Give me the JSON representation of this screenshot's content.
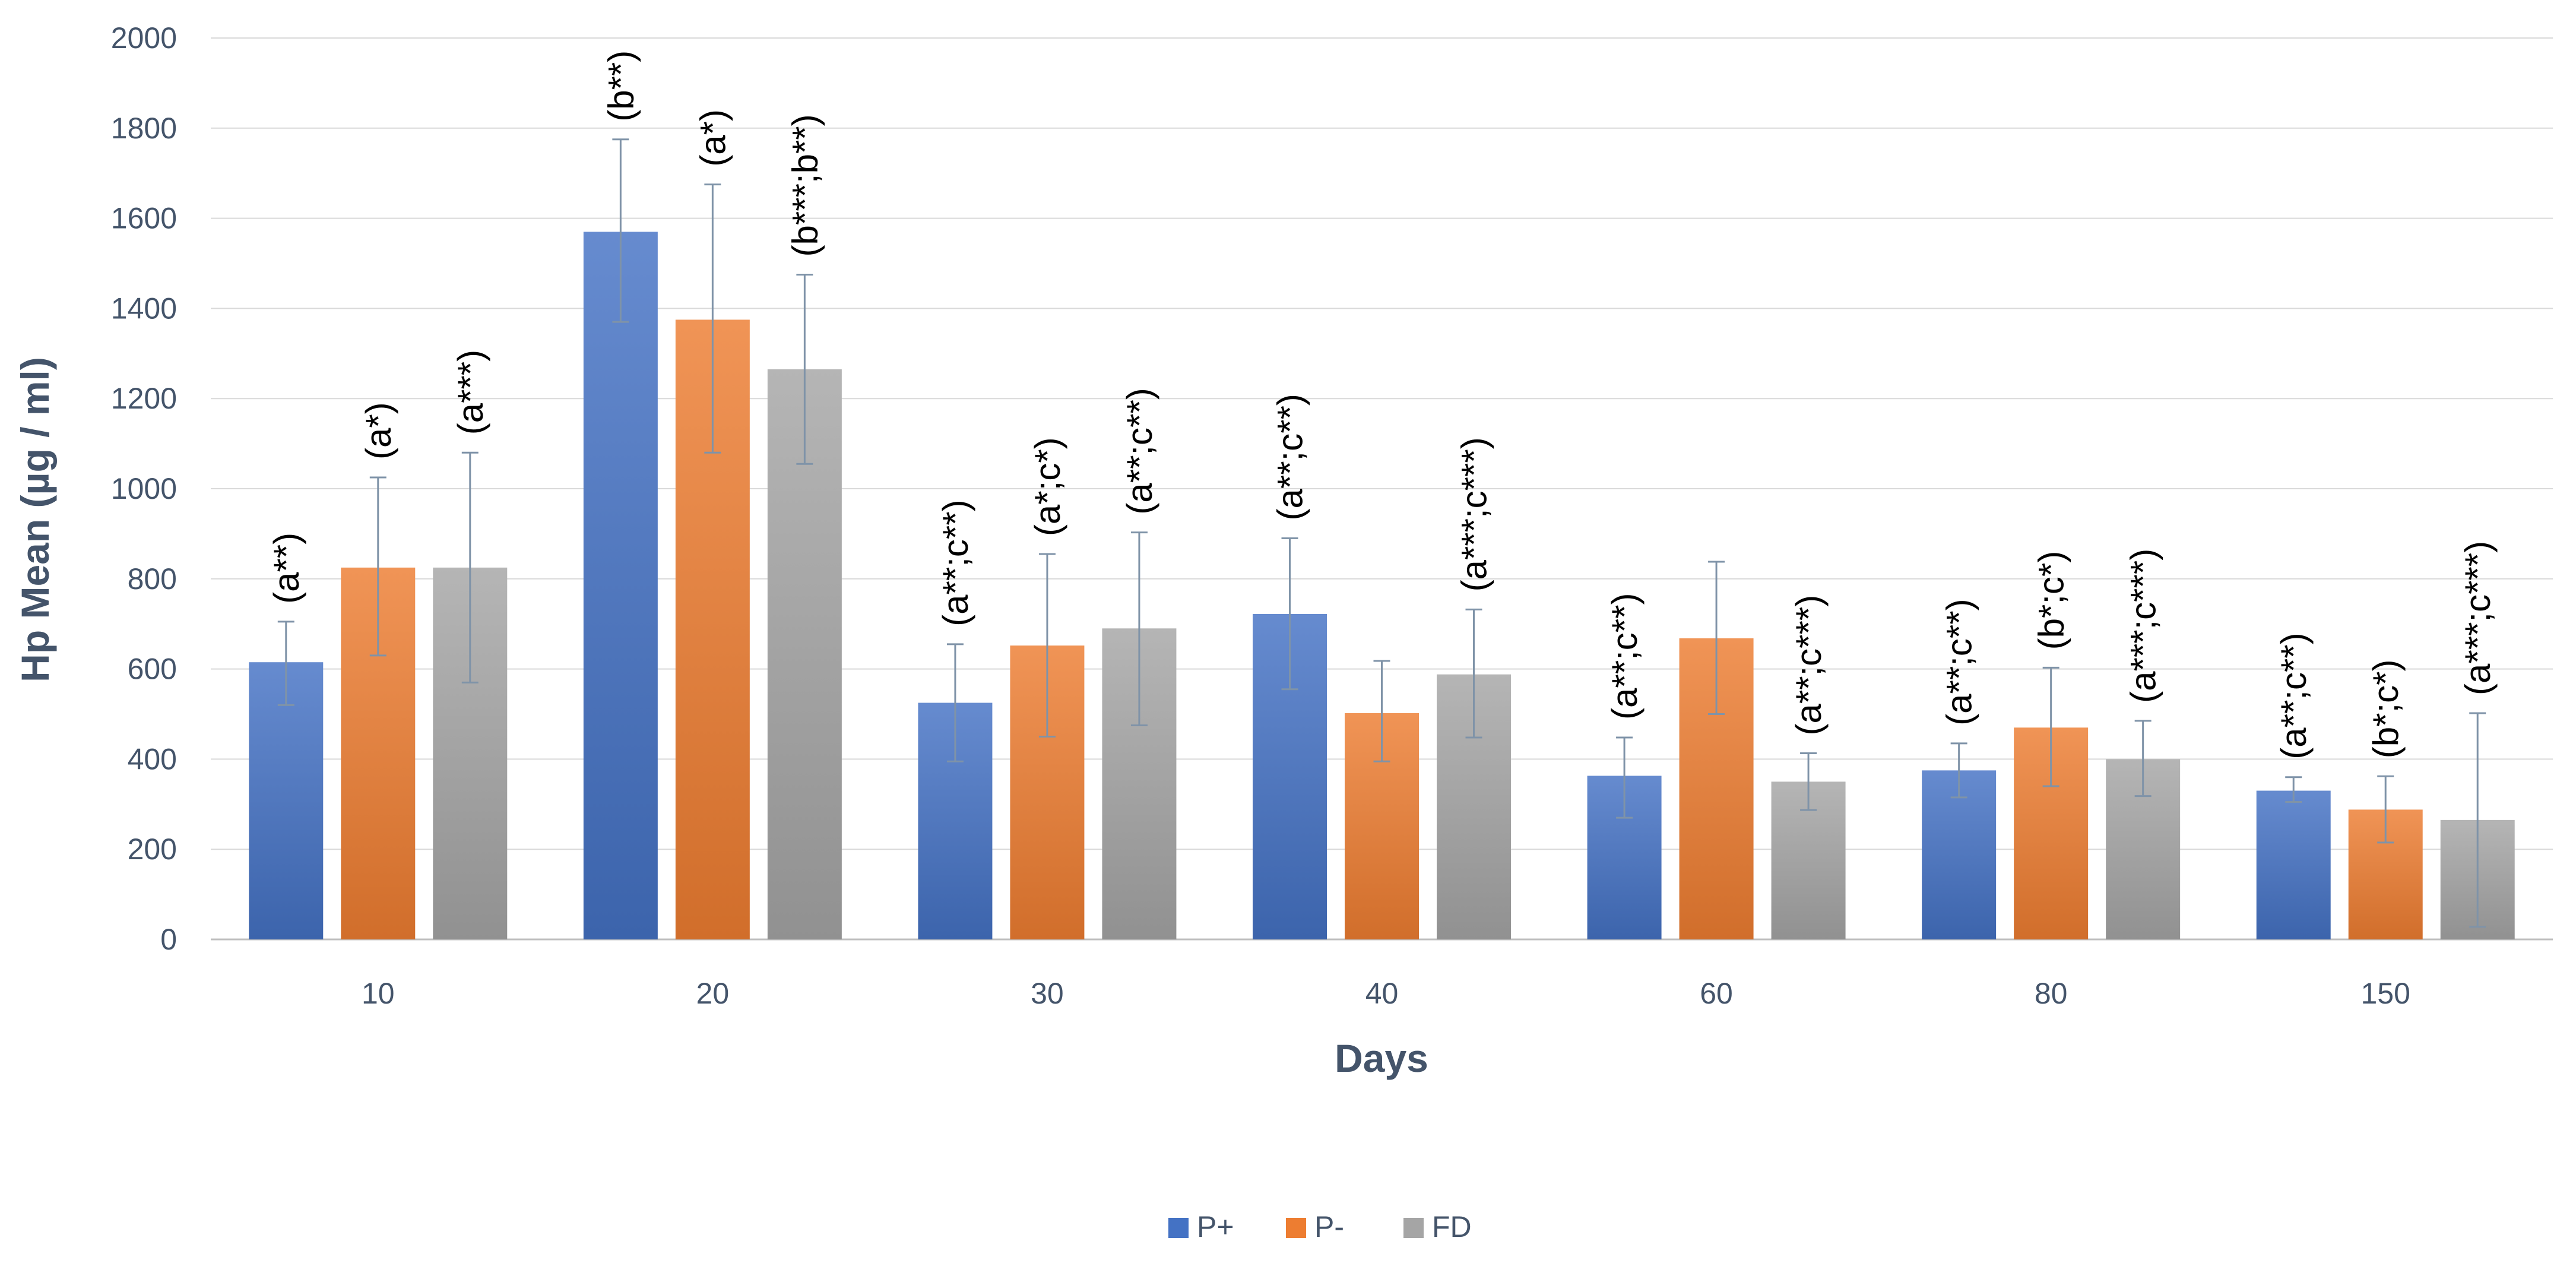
{
  "chart_data": {
    "type": "bar",
    "title": "",
    "xlabel": "Days",
    "ylabel": "Hp Mean (µg / ml)",
    "ylim": [
      0,
      2000
    ],
    "yticks": [
      0,
      200,
      400,
      600,
      800,
      1000,
      1200,
      1400,
      1600,
      1800,
      2000
    ],
    "grid": true,
    "legend_position": "bottom",
    "categories": [
      "10",
      "20",
      "30",
      "40",
      "60",
      "80",
      "150"
    ],
    "series": [
      {
        "name": "P+",
        "color": "#4472c4",
        "values": [
          615,
          1570,
          525,
          722,
          363,
          375,
          330
        ],
        "error_low": [
          520,
          1370,
          395,
          555,
          270,
          315,
          305
        ],
        "error_high": [
          705,
          1775,
          655,
          890,
          448,
          435,
          360
        ],
        "annotations": [
          "(a**)",
          "(b**)",
          "(a**;c**)",
          "(a**;c**)",
          "(a**;c**)",
          "(a**;c**)",
          "(a**;c**)"
        ]
      },
      {
        "name": "P-",
        "color": "#ed7d31",
        "values": [
          825,
          1375,
          652,
          502,
          668,
          470,
          288
        ],
        "error_low": [
          630,
          1080,
          450,
          395,
          500,
          340,
          215
        ],
        "error_high": [
          1025,
          1675,
          855,
          618,
          838,
          603,
          362
        ],
        "annotations": [
          "(a*)",
          "(a*)",
          "(a*;c*)",
          "",
          "",
          "(b*;c*)",
          "(b*;c*)"
        ]
      },
      {
        "name": "FD",
        "color": "#a5a5a5",
        "values": [
          825,
          1265,
          690,
          588,
          350,
          400,
          265
        ],
        "error_low": [
          570,
          1055,
          475,
          448,
          287,
          318,
          28
        ],
        "error_high": [
          1080,
          1475,
          903,
          732,
          413,
          485,
          502
        ],
        "annotations": [
          "(a***)",
          "(b***;b**)",
          "(a**;c**)",
          "(a***;c***)",
          "(a**;c***)",
          "(a***;c***)",
          "(a***;c***)"
        ]
      }
    ]
  }
}
